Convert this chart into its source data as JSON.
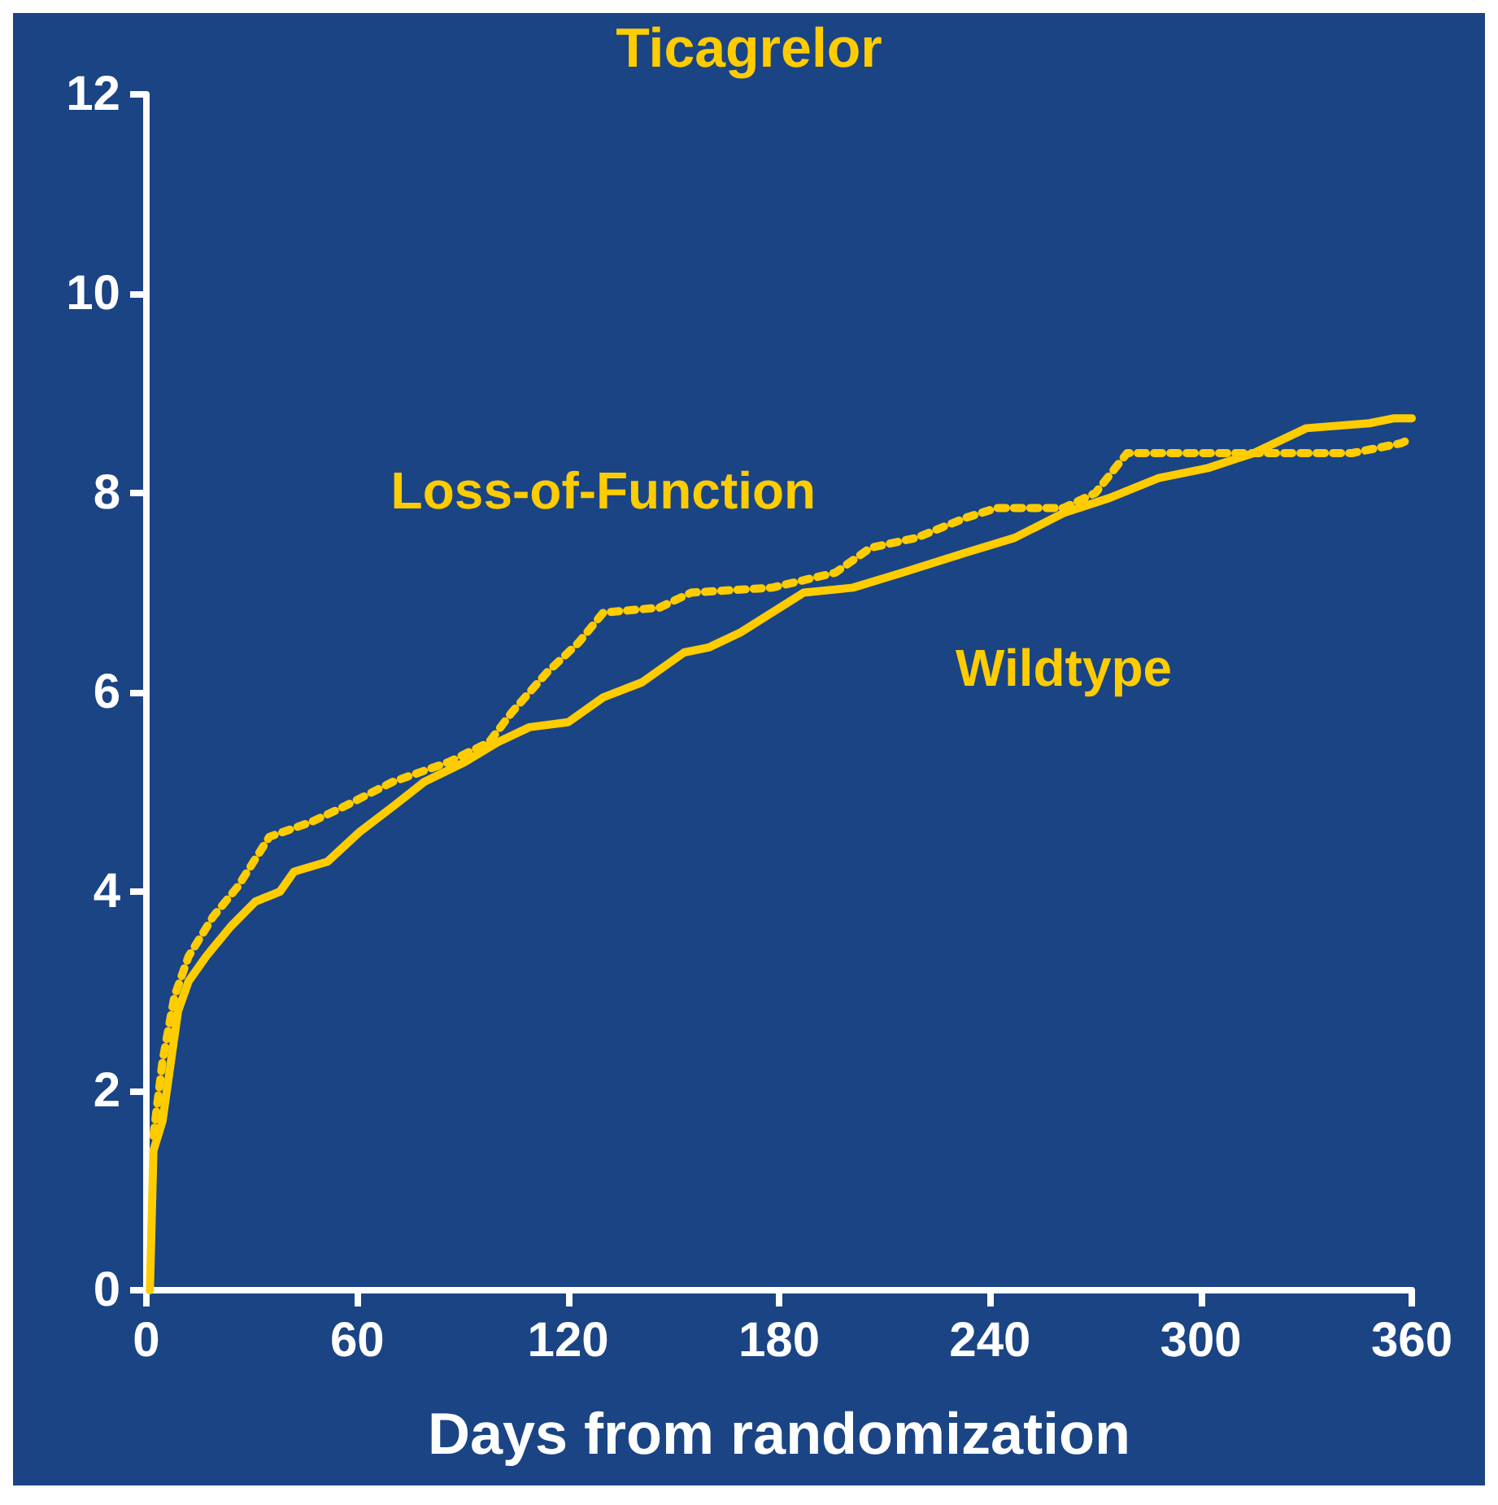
{
  "chart_data": {
    "type": "line",
    "title": "Ticagrelor",
    "xlabel": "Days from randomization",
    "xlim": [
      0,
      360
    ],
    "xticks": [
      0,
      60,
      120,
      180,
      240,
      300,
      360
    ],
    "ylim": [
      0,
      12
    ],
    "yticks": [
      0,
      2,
      4,
      6,
      8,
      10,
      12
    ],
    "grid": false,
    "legend": false,
    "marker": "none",
    "series": [
      {
        "name": "Wildtype",
        "color": "#ffcc00",
        "line_style": "solid",
        "x": [
          1,
          2,
          4.6,
          7,
          9,
          12,
          17,
          24,
          31,
          38,
          42,
          51.5,
          60.7,
          70,
          79,
          90.6,
          100,
          109,
          120,
          130,
          141,
          153,
          160,
          169,
          178,
          187,
          201,
          215,
          233,
          247,
          261,
          274,
          288,
          302,
          315,
          330,
          348,
          355,
          360
        ],
        "values": [
          0,
          1.4,
          1.7,
          2.3,
          2.8,
          3.1,
          3.35,
          3.65,
          3.9,
          4.0,
          4.2,
          4.3,
          4.6,
          4.85,
          5.1,
          5.3,
          5.5,
          5.65,
          5.7,
          5.95,
          6.1,
          6.4,
          6.45,
          6.6,
          6.8,
          7.0,
          7.05,
          7.2,
          7.4,
          7.55,
          7.8,
          7.95,
          8.15,
          8.25,
          8.4,
          8.65,
          8.7,
          8.75,
          8.75
        ]
      },
      {
        "name": "Loss-of-Function",
        "color": "#ffcc00",
        "line_style": "dotted",
        "x": [
          2,
          4.6,
          8,
          12,
          19,
          26,
          35,
          47,
          56,
          70,
          86,
          97.5,
          104,
          114,
          123,
          130,
          146,
          155,
          178,
          196,
          206,
          219,
          233,
          242,
          261,
          270,
          279,
          307,
          343,
          357,
          360
        ],
        "values": [
          1.55,
          2.3,
          2.95,
          3.35,
          3.75,
          4.05,
          4.55,
          4.7,
          4.85,
          5.1,
          5.3,
          5.5,
          5.8,
          6.2,
          6.5,
          6.8,
          6.85,
          7.0,
          7.05,
          7.2,
          7.45,
          7.55,
          7.75,
          7.85,
          7.85,
          8.0,
          8.4,
          8.4,
          8.4,
          8.5,
          8.55
        ]
      }
    ]
  }
}
